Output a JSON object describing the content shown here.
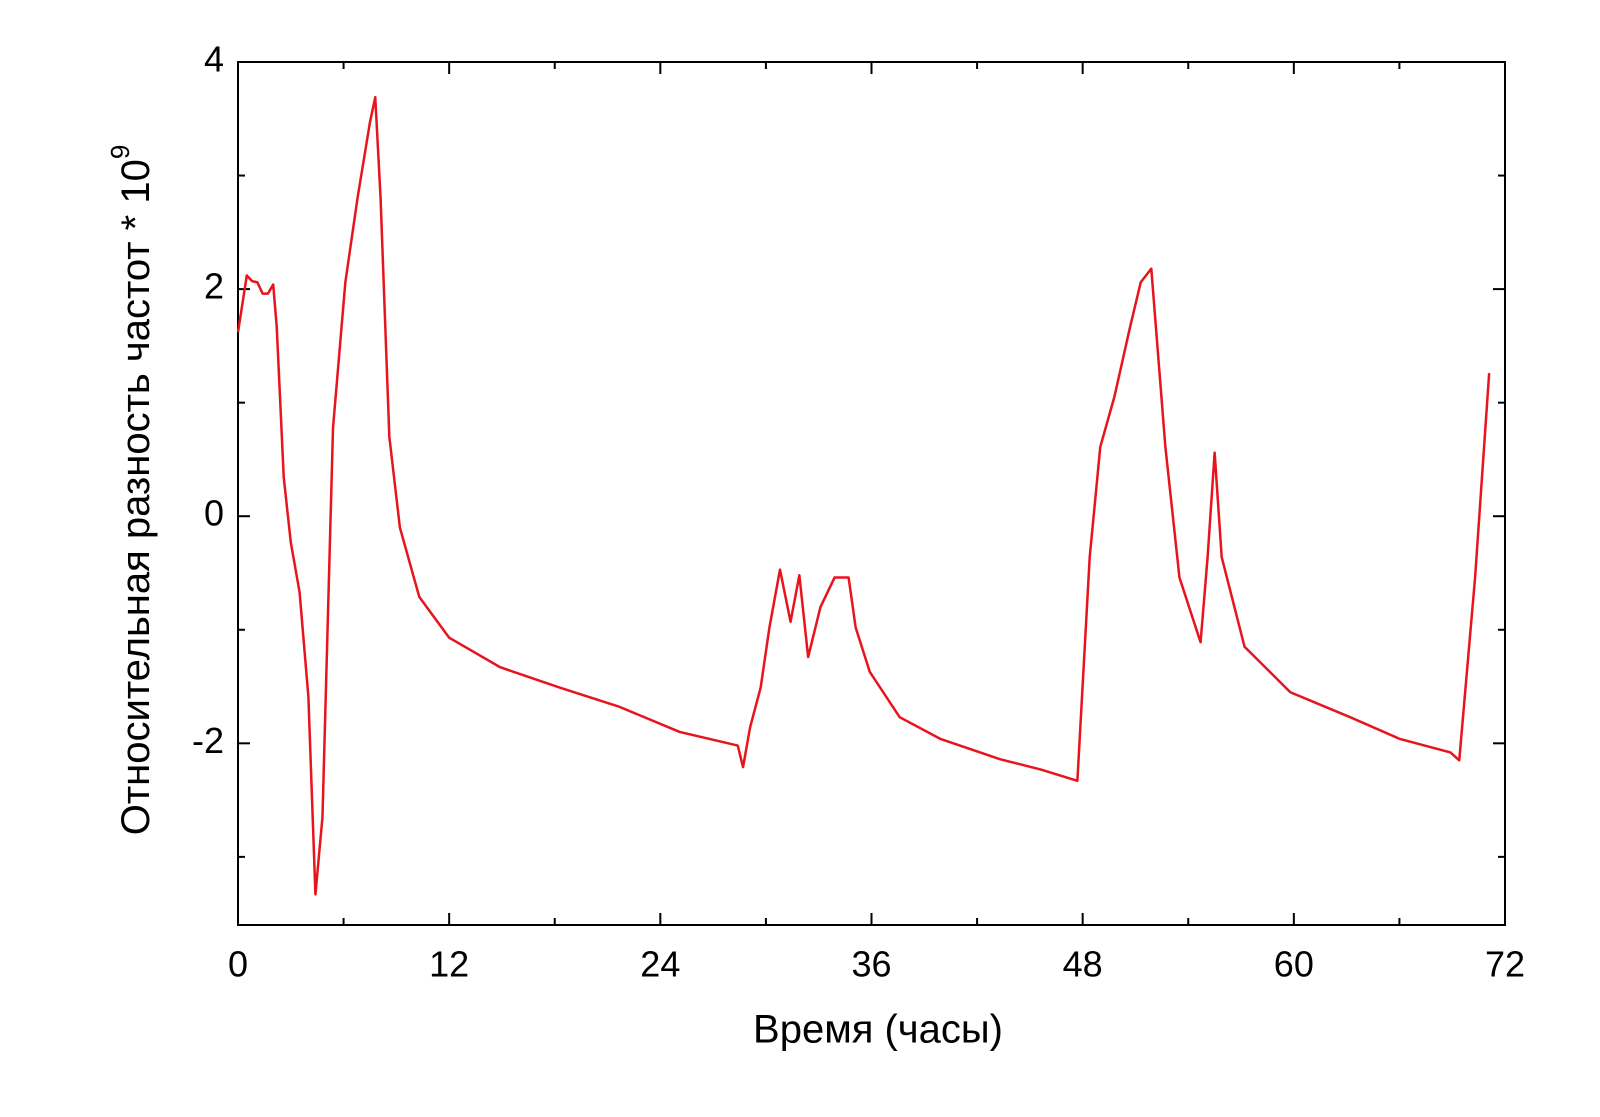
{
  "chart_data": {
    "type": "line",
    "xlabel": "Время (часы)",
    "ylabel": "Относительная разность частот * 10",
    "ylabel_exponent": "9",
    "xlim": [
      0,
      72
    ],
    "xticks": [
      0,
      12,
      24,
      36,
      48,
      60,
      72
    ],
    "xminorticks": [
      6,
      18,
      30,
      42,
      54,
      66
    ],
    "ylim": [
      -3.6,
      4
    ],
    "yticks": [
      -2,
      0,
      2,
      4
    ],
    "yminorticks": [
      -3,
      -1,
      1,
      3
    ],
    "series": [
      {
        "color": "#e8141c",
        "x": [
          0,
          0.5,
          0.8,
          1.1,
          1.4,
          1.7,
          2.0,
          2.2,
          2.6,
          3.0,
          3.5,
          4.0,
          4.4,
          4.8,
          5.4,
          6.1,
          6.8,
          7.5,
          7.8,
          8.1,
          8.6,
          9.2,
          10.3,
          12.0,
          14.9,
          18.3,
          21.7,
          25.1,
          28.4,
          28.7,
          29.1,
          29.7,
          30.2,
          30.8,
          31.4,
          31.9,
          32.4,
          33.1,
          33.9,
          34.7,
          35.1,
          35.9,
          37.6,
          39.9,
          43.3,
          45.6,
          47.7,
          48.4,
          49.0,
          49.8,
          50.7,
          51.3,
          51.9,
          52.7,
          53.5,
          54.7,
          55.1,
          55.5,
          55.9,
          57.2,
          59.8,
          63.2,
          66.0,
          68.9,
          69.4,
          70.3,
          71.1
        ],
        "values": [
          1.62,
          2.12,
          2.07,
          2.06,
          1.96,
          1.96,
          2.04,
          1.67,
          0.34,
          -0.23,
          -0.67,
          -1.59,
          -3.33,
          -2.65,
          0.78,
          2.06,
          2.81,
          3.47,
          3.69,
          2.81,
          0.7,
          -0.1,
          -0.71,
          -1.07,
          -1.33,
          -1.51,
          -1.68,
          -1.9,
          -2.02,
          -2.21,
          -1.86,
          -1.51,
          -0.98,
          -0.47,
          -0.93,
          -0.52,
          -1.24,
          -0.8,
          -0.54,
          -0.54,
          -0.98,
          -1.37,
          -1.77,
          -1.96,
          -2.14,
          -2.23,
          -2.33,
          -0.36,
          0.61,
          1.05,
          1.67,
          2.06,
          2.18,
          0.61,
          -0.54,
          -1.11,
          -0.36,
          0.56,
          -0.36,
          -1.15,
          -1.55,
          -1.77,
          -1.96,
          -2.08,
          -2.15,
          -0.54,
          1.26
        ]
      }
    ]
  }
}
